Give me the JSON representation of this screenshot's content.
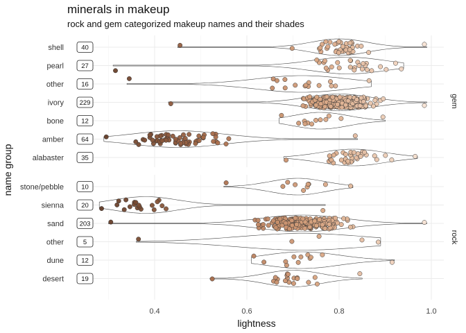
{
  "title": "minerals in makeup",
  "subtitle": "rock and gem categorized makeup names and their shades",
  "chart_data": {
    "type": "scatter",
    "variant": "jittered points over horizontal violins, faceted by category",
    "xlabel": "lightness",
    "ylabel": "name group",
    "xlim": [
      0.27,
      1.02
    ],
    "xticks": [
      0.4,
      0.6,
      0.8,
      1.0
    ],
    "xtick_labels": [
      "0.4",
      "0.6",
      "0.8",
      "1.0"
    ],
    "grid": true,
    "color_encoding": "point fill color is the shade itself",
    "facets": [
      {
        "name": "gem",
        "groups": [
          {
            "label": "shell",
            "count": "40",
            "min": 0.45,
            "max": 0.99,
            "center": 0.8,
            "spread": 0.06
          },
          {
            "label": "pearl",
            "count": "27",
            "min": 0.31,
            "max": 0.94,
            "center": 0.82,
            "spread": 0.08
          },
          {
            "label": "other",
            "count": "16",
            "min": 0.34,
            "max": 0.87,
            "center": 0.72,
            "spread": 0.1
          },
          {
            "label": "ivory",
            "count": "229",
            "min": 0.43,
            "max": 0.99,
            "center": 0.8,
            "spread": 0.07
          },
          {
            "label": "bone",
            "count": "12",
            "min": 0.67,
            "max": 0.9,
            "center": 0.76,
            "spread": 0.06
          },
          {
            "label": "amber",
            "count": "64",
            "min": 0.29,
            "max": 0.84,
            "center": 0.45,
            "spread": 0.1
          },
          {
            "label": "alabaster",
            "count": "35",
            "min": 0.68,
            "max": 0.97,
            "center": 0.83,
            "spread": 0.07
          }
        ]
      },
      {
        "name": "rock",
        "groups": [
          {
            "label": "stone/pebble",
            "count": "10",
            "min": 0.55,
            "max": 0.83,
            "center": 0.71,
            "spread": 0.06
          },
          {
            "label": "sienna",
            "count": "20",
            "min": 0.28,
            "max": 0.77,
            "center": 0.38,
            "spread": 0.07
          },
          {
            "label": "sand",
            "count": "203",
            "min": 0.3,
            "max": 0.99,
            "center": 0.72,
            "spread": 0.09
          },
          {
            "label": "other",
            "count": "5",
            "min": 0.36,
            "max": 0.89,
            "center": 0.72,
            "spread": 0.14
          },
          {
            "label": "dune",
            "count": "12",
            "min": 0.61,
            "max": 0.92,
            "center": 0.72,
            "spread": 0.08
          },
          {
            "label": "desert",
            "count": "19",
            "min": 0.52,
            "max": 0.85,
            "center": 0.7,
            "spread": 0.06
          }
        ]
      }
    ]
  }
}
